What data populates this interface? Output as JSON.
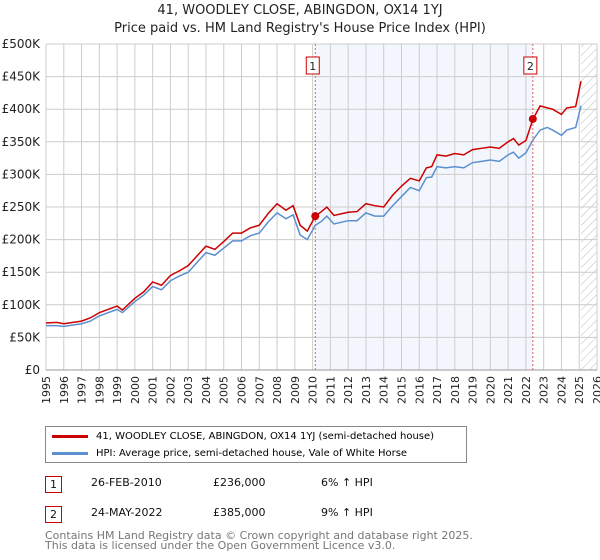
{
  "chart_data": {
    "type": "line",
    "title": "41, WOODLEY CLOSE, ABINGDON, OX14 1YJ",
    "subtitle": "Price paid vs. HM Land Registry's House Price Index (HPI)",
    "ylim": [
      0,
      500000
    ],
    "xlim": [
      1995,
      2026
    ],
    "yticks": [
      "£0",
      "£50K",
      "£100K",
      "£150K",
      "£200K",
      "£250K",
      "£300K",
      "£350K",
      "£400K",
      "£450K",
      "£500K"
    ],
    "xticks": [
      "1995",
      "1996",
      "1997",
      "1998",
      "1999",
      "2000",
      "2001",
      "2002",
      "2003",
      "2004",
      "2005",
      "2006",
      "2007",
      "2008",
      "2009",
      "2010",
      "2011",
      "2012",
      "2013",
      "2014",
      "2015",
      "2016",
      "2017",
      "2018",
      "2019",
      "2020",
      "2021",
      "2022",
      "2023",
      "2024",
      "2025",
      "2026"
    ],
    "series": [
      {
        "name": "41, WOODLEY CLOSE, ABINGDON, OX14 1YJ (semi-detached house)",
        "color": "#cc0000",
        "x": [
          1995,
          1995.6,
          1996,
          1997,
          1997.5,
          1998,
          1999,
          1999.3,
          2000,
          2000.5,
          2001,
          2001.5,
          2002,
          2002.5,
          2003,
          2003.5,
          2004,
          2004.5,
          2005,
          2005.5,
          2006,
          2006.5,
          2007,
          2007.5,
          2008,
          2008.5,
          2008.9,
          2009.3,
          2009.7,
          2010.15,
          2010.5,
          2010.8,
          2011.2,
          2012,
          2012.5,
          2013,
          2013.5,
          2014,
          2014.5,
          2015,
          2015.5,
          2016,
          2016.4,
          2016.7,
          2017,
          2017.5,
          2018,
          2018.5,
          2019,
          2019.5,
          2020,
          2020.5,
          2021,
          2021.3,
          2021.6,
          2022,
          2022.4,
          2022.8,
          2023.2,
          2023.5,
          2024,
          2024.3,
          2024.8,
          2025.1
        ],
        "y": [
          72000,
          73000,
          71000,
          75000,
          80000,
          88000,
          98000,
          92000,
          110000,
          120000,
          135000,
          130000,
          145000,
          152000,
          160000,
          175000,
          190000,
          185000,
          197000,
          210000,
          210000,
          218000,
          222000,
          240000,
          255000,
          245000,
          252000,
          222000,
          213000,
          236000,
          243000,
          250000,
          237000,
          242000,
          243000,
          255000,
          252000,
          250000,
          268000,
          282000,
          294000,
          290000,
          310000,
          312000,
          330000,
          328000,
          332000,
          330000,
          338000,
          340000,
          342000,
          340000,
          350000,
          355000,
          345000,
          352000,
          385000,
          405000,
          402000,
          400000,
          392000,
          402000,
          404000,
          443000
        ]
      },
      {
        "name": "HPI: Average price, semi-detached house, Vale of White Horse",
        "color": "#5b8fd0",
        "x": [
          1995,
          1995.6,
          1996,
          1997,
          1997.5,
          1998,
          1999,
          1999.3,
          2000,
          2000.5,
          2001,
          2001.5,
          2002,
          2002.5,
          2003,
          2003.5,
          2004,
          2004.5,
          2005,
          2005.5,
          2006,
          2006.5,
          2007,
          2007.5,
          2008,
          2008.5,
          2008.9,
          2009.3,
          2009.7,
          2010.15,
          2010.5,
          2010.8,
          2011.2,
          2012,
          2012.5,
          2013,
          2013.5,
          2014,
          2014.5,
          2015,
          2015.5,
          2016,
          2016.4,
          2016.7,
          2017,
          2017.5,
          2018,
          2018.5,
          2019,
          2019.5,
          2020,
          2020.5,
          2021,
          2021.3,
          2021.6,
          2022,
          2022.4,
          2022.8,
          2023.2,
          2023.5,
          2024,
          2024.3,
          2024.8,
          2025.1
        ],
        "y": [
          68000,
          68000,
          67000,
          71000,
          75000,
          83000,
          93000,
          88000,
          105000,
          115000,
          128000,
          123000,
          137000,
          144000,
          150000,
          165000,
          180000,
          176000,
          187000,
          198000,
          198000,
          206000,
          210000,
          227000,
          241000,
          232000,
          238000,
          207000,
          200000,
          222000,
          228000,
          236000,
          224000,
          229000,
          229000,
          241000,
          236000,
          236000,
          252000,
          266000,
          280000,
          275000,
          295000,
          296000,
          312000,
          310000,
          312000,
          310000,
          318000,
          320000,
          322000,
          320000,
          330000,
          334000,
          325000,
          333000,
          353000,
          368000,
          372000,
          368000,
          360000,
          368000,
          372000,
          405000
        ]
      }
    ],
    "sales": [
      {
        "label": "1",
        "x": 2010.15,
        "y": 236000
      },
      {
        "label": "2",
        "x": 2022.39,
        "y": 385000
      }
    ],
    "future_hatch_from": 2025.1
  },
  "legend": {
    "property": "41, WOODLEY CLOSE, ABINGDON, OX14 1YJ (semi-detached house)",
    "hpi": "HPI: Average price, semi-detached house, Vale of White Horse"
  },
  "transactions": [
    {
      "num": "1",
      "date": "26-FEB-2010",
      "price": "£236,000",
      "delta": "6% ↑ HPI"
    },
    {
      "num": "2",
      "date": "24-MAY-2022",
      "price": "£385,000",
      "delta": "9% ↑ HPI"
    }
  ],
  "footer": {
    "line1": "Contains HM Land Registry data © Crown copyright and database right 2025.",
    "line2": "This data is licensed under the Open Government Licence v3.0."
  }
}
